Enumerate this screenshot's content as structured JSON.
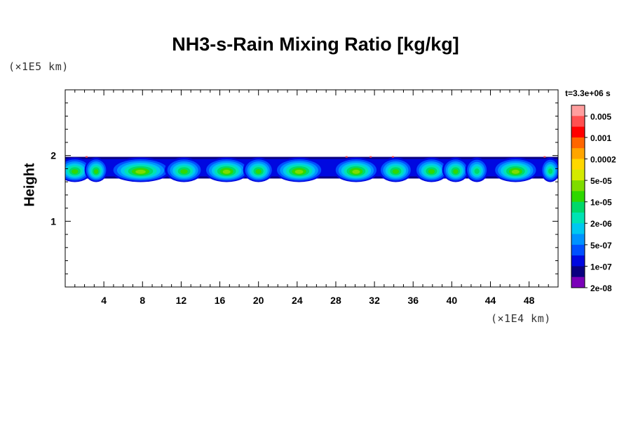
{
  "chart_data": {
    "type": "heatmap",
    "title": "NH3-s-Rain Mixing Ratio [kg/kg]",
    "ylabel": "Height",
    "y_multiplier": "(×1E5 km)",
    "x_multiplier": "(×1E4 km)",
    "xlim": [
      0,
      51
    ],
    "ylim": [
      0,
      3
    ],
    "x_ticks": [
      "4",
      "8",
      "12",
      "16",
      "20",
      "24",
      "28",
      "32",
      "36",
      "40",
      "44",
      "48"
    ],
    "x_tick_values": [
      4,
      8,
      12,
      16,
      20,
      24,
      28,
      32,
      36,
      40,
      44,
      48
    ],
    "y_ticks": [
      "1",
      "2"
    ],
    "y_tick_values": [
      1,
      2
    ],
    "time_label": "t=3.3e+06 s",
    "colorbar": {
      "labels": [
        "0.005",
        "0.001",
        "0.0002",
        "5e-05",
        "1e-05",
        "2e-06",
        "5e-07",
        "1e-07",
        "2e-08"
      ],
      "colors": [
        "#ff9e9e",
        "#ff5050",
        "#ff0000",
        "#ff6600",
        "#ffa500",
        "#ffd700",
        "#d4ea00",
        "#7fdc00",
        "#2ed800",
        "#00d96a",
        "#00e3b4",
        "#00c8f0",
        "#0093ff",
        "#0050ff",
        "#0008e0",
        "#0a0080",
        "#7a00b8"
      ]
    },
    "cloud_band": {
      "height_range": [
        1.65,
        1.98
      ],
      "cells": [
        {
          "x": 1.0,
          "w": 1.8,
          "level": 8
        },
        {
          "x": 3.2,
          "w": 1.2,
          "level": 8
        },
        {
          "x": 7.8,
          "w": 3.2,
          "level": 7
        },
        {
          "x": 12.3,
          "w": 2.0,
          "level": 8
        },
        {
          "x": 16.7,
          "w": 2.4,
          "level": 7
        },
        {
          "x": 20.0,
          "w": 1.6,
          "level": 8
        },
        {
          "x": 24.2,
          "w": 2.6,
          "level": 7
        },
        {
          "x": 30.1,
          "w": 2.4,
          "level": 7
        },
        {
          "x": 34.2,
          "w": 1.8,
          "level": 8
        },
        {
          "x": 37.9,
          "w": 1.8,
          "level": 8
        },
        {
          "x": 40.4,
          "w": 1.4,
          "level": 8
        },
        {
          "x": 42.6,
          "w": 1.2,
          "level": 9
        },
        {
          "x": 46.6,
          "w": 2.4,
          "level": 7
        },
        {
          "x": 50.2,
          "w": 1.0,
          "level": 9
        }
      ]
    }
  }
}
